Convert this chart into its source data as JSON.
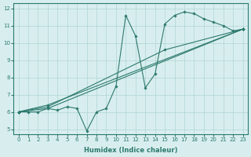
{
  "xlabel": "Humidex (Indice chaleur)",
  "xlim": [
    -0.5,
    23.5
  ],
  "ylim": [
    4.7,
    12.3
  ],
  "xticks": [
    0,
    1,
    2,
    3,
    4,
    5,
    6,
    7,
    8,
    9,
    10,
    11,
    12,
    13,
    14,
    15,
    16,
    17,
    18,
    19,
    20,
    21,
    22,
    23
  ],
  "yticks": [
    5,
    6,
    7,
    8,
    9,
    10,
    11,
    12
  ],
  "bg_color": "#d8eeee",
  "line_color": "#2d7a6e",
  "grid_color": "#b0d4d4",
  "lines": [
    {
      "x": [
        0,
        1,
        2,
        3,
        4,
        5,
        6,
        7,
        8,
        9,
        10,
        11,
        12,
        13,
        14,
        15,
        16,
        17,
        18,
        19,
        20,
        21,
        22,
        23
      ],
      "y": [
        6.0,
        6.0,
        6.0,
        6.2,
        6.1,
        6.3,
        6.2,
        4.9,
        6.0,
        6.2,
        7.5,
        11.6,
        10.4,
        7.4,
        8.2,
        11.1,
        11.6,
        11.8,
        11.7,
        11.4,
        11.2,
        11.0,
        10.7,
        10.8
      ]
    },
    {
      "x": [
        0,
        3,
        23
      ],
      "y": [
        6.0,
        6.4,
        10.8
      ]
    },
    {
      "x": [
        0,
        3,
        15,
        23
      ],
      "y": [
        6.0,
        6.3,
        9.6,
        10.8
      ]
    },
    {
      "x": [
        0,
        3,
        23
      ],
      "y": [
        6.0,
        6.2,
        10.8
      ]
    }
  ]
}
